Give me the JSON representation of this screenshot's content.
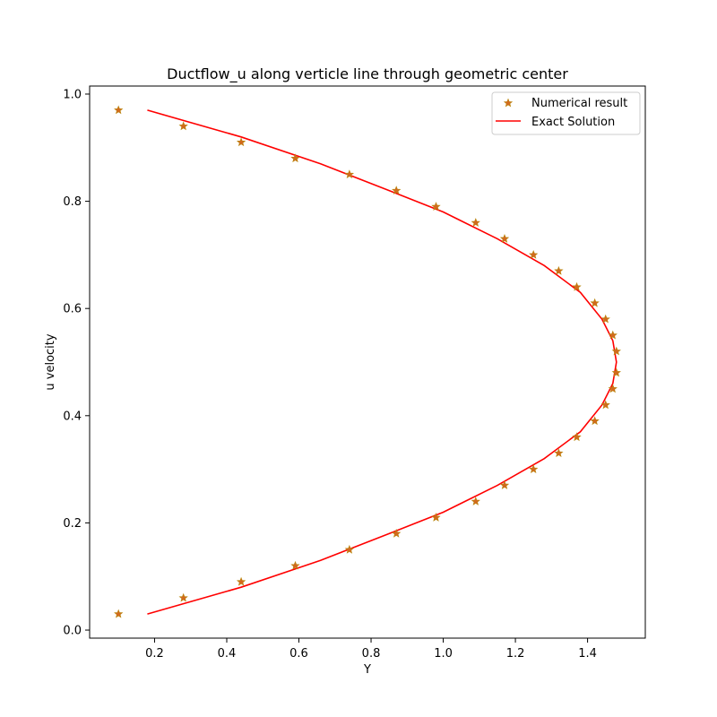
{
  "chart_data": {
    "type": "scatter",
    "title": "Ductflow_u along verticle line through geometric center",
    "xlabel": "Y",
    "ylabel": "u velocity",
    "xlim": [
      0.02,
      1.56
    ],
    "ylim": [
      -0.015,
      1.015
    ],
    "xticks": [
      "0.2",
      "0.4",
      "0.6",
      "0.8",
      "1.0",
      "1.2",
      "1.4"
    ],
    "yticks": [
      "0.0",
      "0.2",
      "0.4",
      "0.6",
      "0.8",
      "1.0"
    ],
    "grid": false,
    "legend_position": "upper-right",
    "series": [
      {
        "name": "Numerical result",
        "kind": "scatter",
        "marker": "star",
        "color": "#d2691e",
        "points": [
          [
            0.1,
            0.03
          ],
          [
            0.28,
            0.06
          ],
          [
            0.44,
            0.09
          ],
          [
            0.59,
            0.12
          ],
          [
            0.74,
            0.15
          ],
          [
            0.87,
            0.18
          ],
          [
            0.98,
            0.21
          ],
          [
            1.09,
            0.24
          ],
          [
            1.17,
            0.27
          ],
          [
            1.25,
            0.3
          ],
          [
            1.32,
            0.33
          ],
          [
            1.37,
            0.36
          ],
          [
            1.42,
            0.39
          ],
          [
            1.45,
            0.42
          ],
          [
            1.47,
            0.45
          ],
          [
            1.48,
            0.48
          ],
          [
            1.48,
            0.52
          ],
          [
            1.47,
            0.55
          ],
          [
            1.45,
            0.58
          ],
          [
            1.42,
            0.61
          ],
          [
            1.37,
            0.64
          ],
          [
            1.32,
            0.67
          ],
          [
            1.25,
            0.7
          ],
          [
            1.17,
            0.73
          ],
          [
            1.09,
            0.76
          ],
          [
            0.98,
            0.79
          ],
          [
            0.87,
            0.82
          ],
          [
            0.74,
            0.85
          ],
          [
            0.59,
            0.88
          ],
          [
            0.44,
            0.91
          ],
          [
            0.28,
            0.94
          ],
          [
            0.1,
            0.97
          ]
        ]
      },
      {
        "name": "Exact Solution",
        "kind": "line",
        "color": "#ff0000",
        "points": [
          [
            0.18,
            0.03
          ],
          [
            0.44,
            0.08
          ],
          [
            0.66,
            0.13
          ],
          [
            0.85,
            0.18
          ],
          [
            1.0,
            0.22
          ],
          [
            1.15,
            0.27
          ],
          [
            1.28,
            0.32
          ],
          [
            1.38,
            0.37
          ],
          [
            1.44,
            0.42
          ],
          [
            1.47,
            0.46
          ],
          [
            1.48,
            0.5
          ],
          [
            1.47,
            0.54
          ],
          [
            1.44,
            0.58
          ],
          [
            1.38,
            0.63
          ],
          [
            1.28,
            0.68
          ],
          [
            1.15,
            0.73
          ],
          [
            1.0,
            0.78
          ],
          [
            0.85,
            0.82
          ],
          [
            0.66,
            0.87
          ],
          [
            0.44,
            0.92
          ],
          [
            0.18,
            0.97
          ]
        ]
      }
    ]
  }
}
